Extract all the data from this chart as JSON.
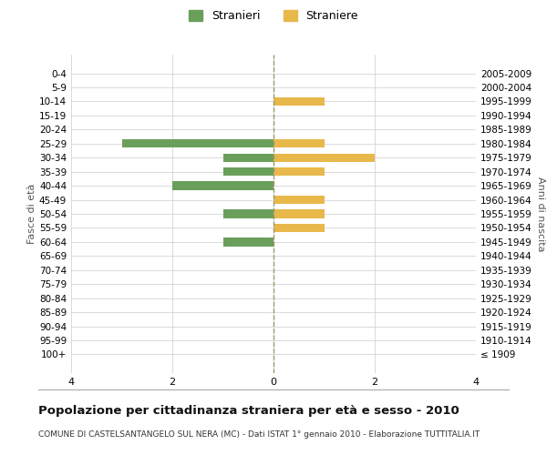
{
  "age_groups": [
    "100+",
    "95-99",
    "90-94",
    "85-89",
    "80-84",
    "75-79",
    "70-74",
    "65-69",
    "60-64",
    "55-59",
    "50-54",
    "45-49",
    "40-44",
    "35-39",
    "30-34",
    "25-29",
    "20-24",
    "15-19",
    "10-14",
    "5-9",
    "0-4"
  ],
  "birth_years": [
    "≤ 1909",
    "1910-1914",
    "1915-1919",
    "1920-1924",
    "1925-1929",
    "1930-1934",
    "1935-1939",
    "1940-1944",
    "1945-1949",
    "1950-1954",
    "1955-1959",
    "1960-1964",
    "1965-1969",
    "1970-1974",
    "1975-1979",
    "1980-1984",
    "1985-1989",
    "1990-1994",
    "1995-1999",
    "2000-2004",
    "2005-2009"
  ],
  "males": [
    0,
    0,
    0,
    0,
    0,
    0,
    0,
    0,
    1,
    0,
    1,
    0,
    2,
    1,
    1,
    3,
    0,
    0,
    0,
    0,
    0
  ],
  "females": [
    0,
    0,
    0,
    0,
    0,
    0,
    0,
    0,
    0,
    1,
    1,
    1,
    0,
    1,
    2,
    1,
    0,
    0,
    1,
    0,
    0
  ],
  "color_male": "#6a9f5b",
  "color_female": "#e8b84b",
  "background_color": "#ffffff",
  "grid_color": "#cccccc",
  "center_line_color": "#999966",
  "title": "Popolazione per cittadinanza straniera per età e sesso - 2010",
  "subtitle": "COMUNE DI CASTELSANTANGELO SUL NERA (MC) - Dati ISTAT 1° gennaio 2010 - Elaborazione TUTTITALIA.IT",
  "ylabel_left": "Fasce di età",
  "ylabel_right": "Anni di nascita",
  "legend_male": "Stranieri",
  "legend_female": "Straniere",
  "xlim": 4,
  "xticks": [
    -4,
    -2,
    0,
    2,
    4
  ],
  "xticklabels": [
    "4",
    "2",
    "0",
    "2",
    "4"
  ]
}
